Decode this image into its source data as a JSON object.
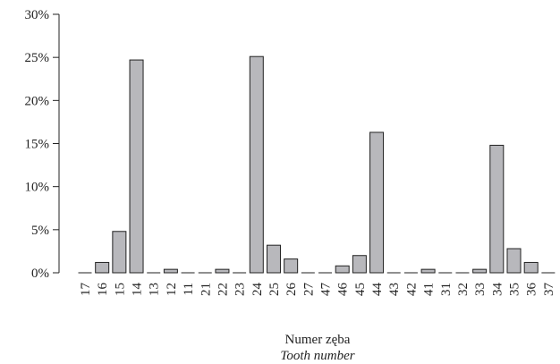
{
  "chart_data": {
    "type": "bar",
    "categories": [
      "17",
      "16",
      "15",
      "14",
      "13",
      "12",
      "11",
      "21",
      "22",
      "23",
      "24",
      "25",
      "26",
      "27",
      "47",
      "46",
      "45",
      "44",
      "43",
      "42",
      "41",
      "31",
      "32",
      "33",
      "34",
      "35",
      "36",
      "37"
    ],
    "values": [
      0,
      1.2,
      4.8,
      24.7,
      0,
      0.4,
      0,
      0,
      0.4,
      0,
      25.1,
      3.2,
      1.6,
      0,
      0,
      0.8,
      2.0,
      16.3,
      0,
      0,
      0.4,
      0,
      0,
      0.4,
      14.8,
      2.8,
      1.2,
      0
    ],
    "ylim": [
      0,
      30
    ],
    "yticks": [
      0,
      5,
      10,
      15,
      20,
      25,
      30
    ],
    "ytick_labels": [
      "0%",
      "5%",
      "10%",
      "15%",
      "20%",
      "25%",
      "30%"
    ],
    "xlabel": "Numer zęba",
    "xlabel_en": "Tooth number",
    "bar_color": "#b8b8bc",
    "grid": false
  }
}
